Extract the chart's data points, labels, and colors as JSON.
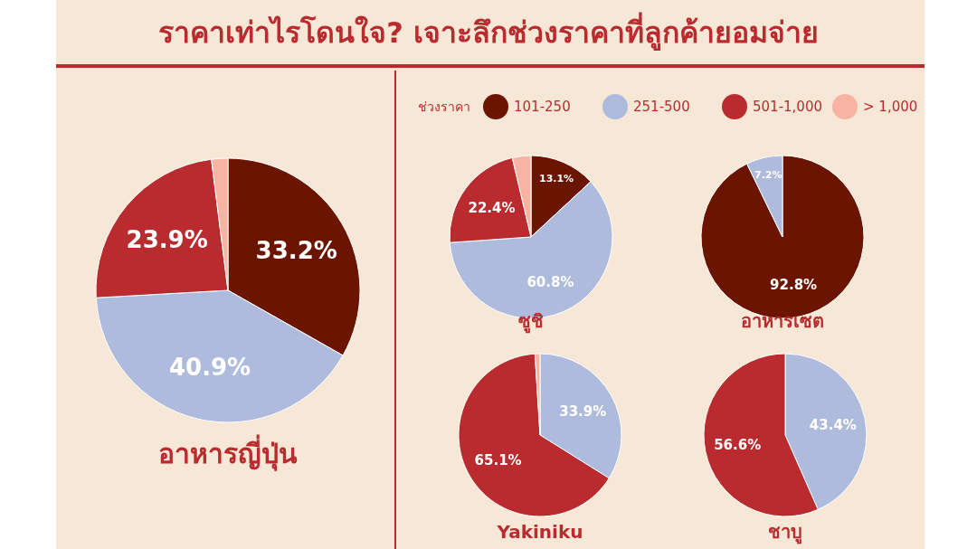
{
  "chart_data": [
    {
      "type": "pie",
      "title": "ราคาเท่าไรโดนใจ? เจาะลึกช่วงราคาที่ลูกค้ายอมจ่าย",
      "xlabel": "อาหารญี่ปุ่น",
      "values": [
        33.2,
        40.9,
        23.9,
        2.0
      ],
      "colors": [
        "#6b1400",
        "#aebbdc",
        "#b92b2e",
        "#f9b3a3"
      ],
      "value_labels": [
        "33.2%",
        "40.9%",
        "23.9%",
        null
      ]
    },
    {
      "type": "pie",
      "xlabel": "ซูชิ",
      "legend": "top",
      "legend_title": "ช่วงราคา",
      "categories": [
        "101-250",
        "251-500",
        "501-1,000",
        "> 1,000"
      ],
      "values": [
        13.1,
        60.8,
        22.4,
        3.7
      ],
      "colors": [
        "#6b1400",
        "#aebbdc",
        "#b92b2e",
        "#f9b3a3"
      ],
      "value_labels": [
        "13.1%",
        "60.8%",
        "22.4%",
        null
      ]
    },
    {
      "type": "pie",
      "xlabel": "อาหารเซต",
      "values": [
        92.8,
        7.2
      ],
      "colors": [
        "#6b1400",
        "#aebbdc"
      ],
      "value_labels": [
        "92.8%",
        "7.2%"
      ]
    },
    {
      "type": "pie",
      "xlabel": "Yakiniku",
      "values": [
        33.9,
        65.1,
        1.0
      ],
      "colors": [
        "#aebbdc",
        "#b92b2e",
        "#f9b3a3"
      ],
      "value_labels": [
        "33.9%",
        "65.1%",
        null
      ]
    },
    {
      "type": "pie",
      "xlabel": "ชาบู",
      "values": [
        43.4,
        56.6
      ],
      "colors": [
        "#aebbdc",
        "#b92b2e"
      ],
      "value_labels": [
        "43.4%",
        "56.6%"
      ]
    }
  ]
}
